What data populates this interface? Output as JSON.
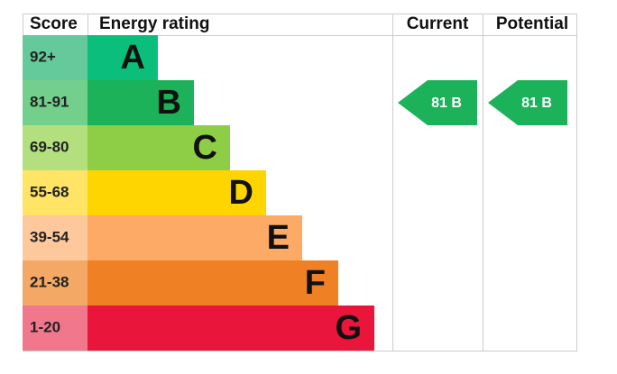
{
  "header": {
    "score": "Score",
    "rating": "Energy rating",
    "current": "Current",
    "potential": "Potential"
  },
  "bands": [
    {
      "score": "92+",
      "letter": "A",
      "color": "#0cbe7b",
      "score_color": "#64c99b"
    },
    {
      "score": "81-91",
      "letter": "B",
      "color": "#1bb25a",
      "score_color": "#72cf8c"
    },
    {
      "score": "69-80",
      "letter": "C",
      "color": "#8dce46",
      "score_color": "#b4df7e"
    },
    {
      "score": "55-68",
      "letter": "D",
      "color": "#ffd500",
      "score_color": "#ffe466"
    },
    {
      "score": "39-54",
      "letter": "E",
      "color": "#fcaa65",
      "score_color": "#fdc89c"
    },
    {
      "score": "21-38",
      "letter": "F",
      "color": "#ef8023",
      "score_color": "#f4a866"
    },
    {
      "score": "1-20",
      "letter": "G",
      "color": "#e9153b",
      "score_color": "#f0778c"
    }
  ],
  "current": {
    "label": "81 B",
    "band": 1
  },
  "potential": {
    "label": "81 B",
    "band": 1
  }
}
